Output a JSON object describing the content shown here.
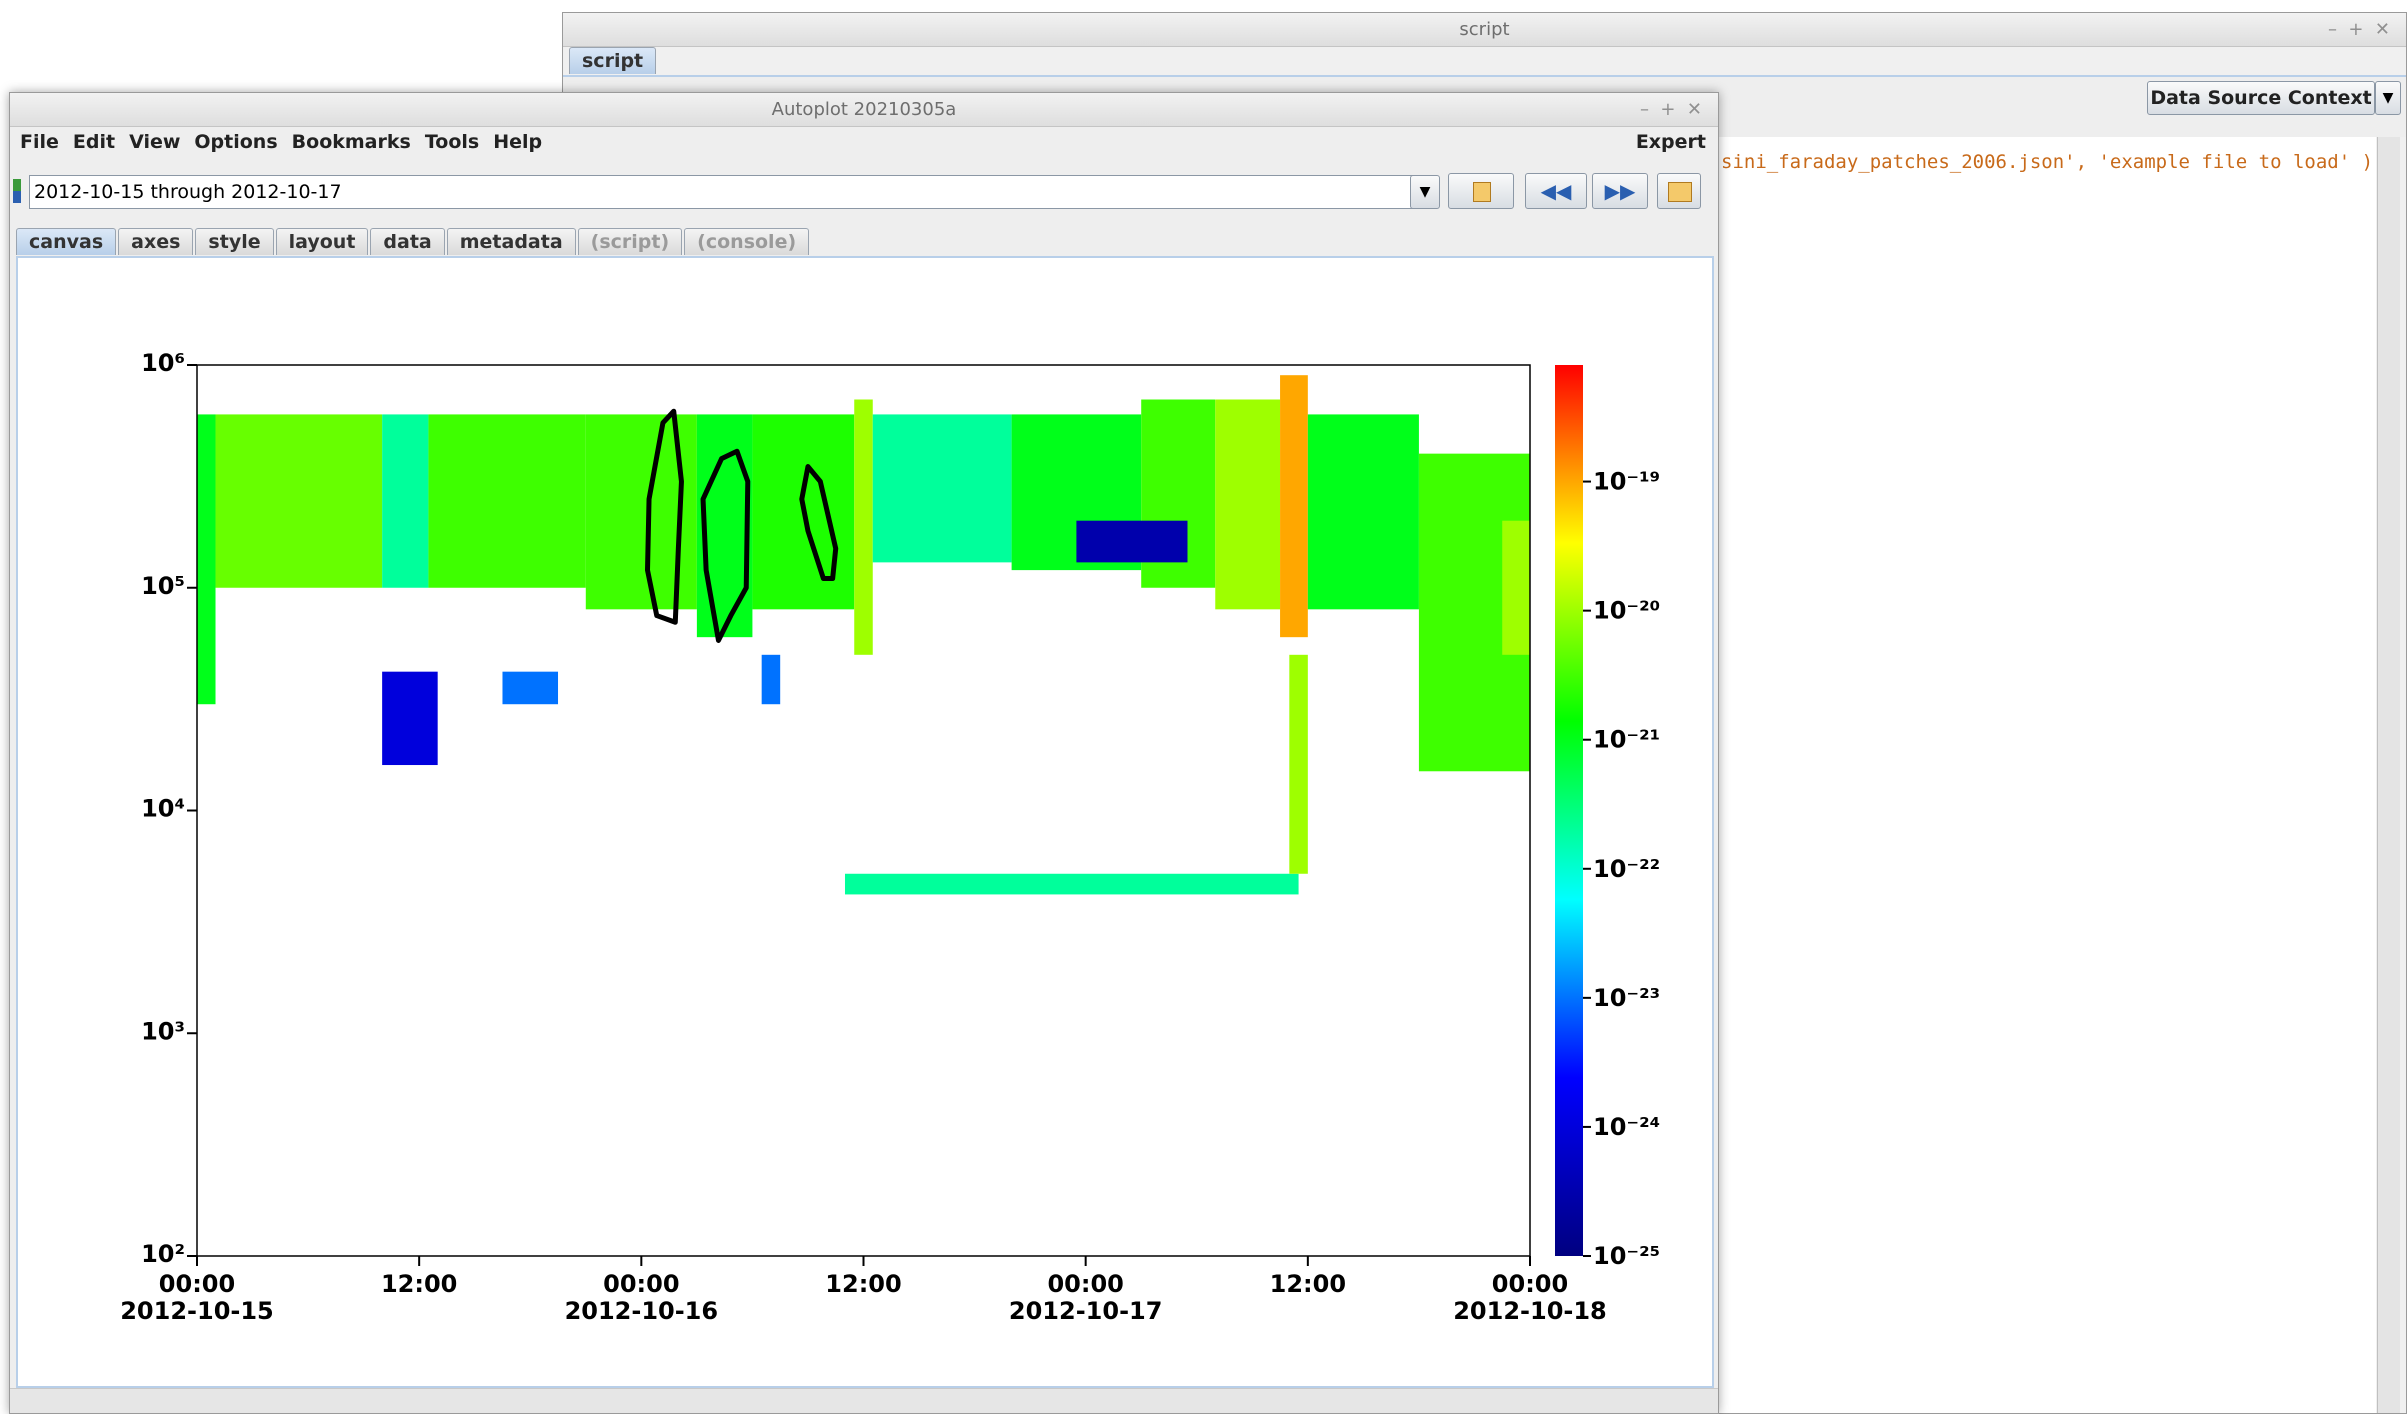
{
  "background_window": {
    "title": "script",
    "tab": "script",
    "context_button": "Data Source Context",
    "code_line": "sini_faraday_patches_2006.json', 'example file to load' )"
  },
  "window": {
    "title": "Autoplot 20210305a",
    "menu": [
      "File",
      "Edit",
      "View",
      "Options",
      "Bookmarks",
      "Tools",
      "Help"
    ],
    "mode": "Expert",
    "uri": "2012-10-15 through 2012-10-17",
    "tabs": [
      "canvas",
      "axes",
      "style",
      "layout",
      "data",
      "metadata",
      "(script)",
      "(console)"
    ]
  },
  "chart_data": {
    "type": "spectrogram",
    "xlim": [
      "2012-10-15T00:00",
      "2012-10-18T00:00"
    ],
    "xticks": [
      {
        "value": "2012-10-15T00:00",
        "label": "00:00",
        "sublabel": "2012-10-15"
      },
      {
        "value": "2012-10-15T12:00",
        "label": "12:00"
      },
      {
        "value": "2012-10-16T00:00",
        "label": "00:00",
        "sublabel": "2012-10-16"
      },
      {
        "value": "2012-10-16T12:00",
        "label": "12:00"
      },
      {
        "value": "2012-10-17T00:00",
        "label": "00:00",
        "sublabel": "2012-10-17"
      },
      {
        "value": "2012-10-17T12:00",
        "label": "12:00"
      },
      {
        "value": "2012-10-18T00:00",
        "label": "00:00",
        "sublabel": "2012-10-18"
      }
    ],
    "ylim": [
      100,
      1000000
    ],
    "ylog": true,
    "yticks": [
      {
        "value": 100,
        "label": "10²"
      },
      {
        "value": 1000,
        "label": "10³"
      },
      {
        "value": 10000,
        "label": "10⁴"
      },
      {
        "value": 100000,
        "label": "10⁵"
      },
      {
        "value": 1000000,
        "label": "10⁶"
      }
    ],
    "zlim": [
      1e-25,
      8e-19
    ],
    "zlog": true,
    "zticks": [
      {
        "value": 1e-25,
        "label": "10⁻²⁵"
      },
      {
        "value": 1e-24,
        "label": "10⁻²⁴"
      },
      {
        "value": 1e-23,
        "label": "10⁻²³"
      },
      {
        "value": 1e-22,
        "label": "10⁻²²"
      },
      {
        "value": 1e-21,
        "label": "10⁻²¹"
      },
      {
        "value": 1e-20,
        "label": "10⁻²⁰"
      },
      {
        "value": 1e-19,
        "label": "10⁻¹⁹"
      }
    ],
    "colormap": [
      "#000080",
      "#0000ff",
      "#00ffff",
      "#00ff00",
      "#ffff00",
      "#ff0000"
    ],
    "patches": [
      {
        "t": [
          "2012-10-15T00:00",
          "2012-10-15T01:00"
        ],
        "f": [
          30000,
          600000
        ],
        "z": 1e-21
      },
      {
        "t": [
          "2012-10-15T01:00",
          "2012-10-15T10:00"
        ],
        "f": [
          100000,
          600000
        ],
        "z": 5e-21
      },
      {
        "t": [
          "2012-10-15T10:00",
          "2012-10-15T12:30"
        ],
        "f": [
          100000,
          600000
        ],
        "z": 2e-22
      },
      {
        "t": [
          "2012-10-15T12:30",
          "2012-10-15T21:00"
        ],
        "f": [
          100000,
          600000
        ],
        "z": 3e-21
      },
      {
        "t": [
          "2012-10-15T21:00",
          "2012-10-16T03:00"
        ],
        "f": [
          80000,
          600000
        ],
        "z": 3e-21
      },
      {
        "t": [
          "2012-10-16T03:00",
          "2012-10-16T06:00"
        ],
        "f": [
          60000,
          600000
        ],
        "z": 1e-21
      },
      {
        "t": [
          "2012-10-16T06:00",
          "2012-10-16T11:30"
        ],
        "f": [
          80000,
          600000
        ],
        "z": 2e-21
      },
      {
        "t": [
          "2012-10-16T11:30",
          "2012-10-16T12:30"
        ],
        "f": [
          50000,
          700000
        ],
        "z": 1e-20
      },
      {
        "t": [
          "2012-10-16T12:30",
          "2012-10-16T20:00"
        ],
        "f": [
          130000,
          600000
        ],
        "z": 2e-22
      },
      {
        "t": [
          "2012-10-16T20:00",
          "2012-10-17T03:00"
        ],
        "f": [
          120000,
          600000
        ],
        "z": 1e-21
      },
      {
        "t": [
          "2012-10-17T03:00",
          "2012-10-17T07:00"
        ],
        "f": [
          100000,
          700000
        ],
        "z": 3e-21
      },
      {
        "t": [
          "2012-10-17T07:00",
          "2012-10-17T10:30"
        ],
        "f": [
          80000,
          700000
        ],
        "z": 1e-20
      },
      {
        "t": [
          "2012-10-17T10:30",
          "2012-10-17T12:00"
        ],
        "f": [
          60000,
          900000
        ],
        "z": 1e-19
      },
      {
        "t": [
          "2012-10-17T12:00",
          "2012-10-17T18:00"
        ],
        "f": [
          80000,
          600000
        ],
        "z": 1e-21
      },
      {
        "t": [
          "2012-10-17T18:00",
          "2012-10-18T00:00"
        ],
        "f": [
          15000,
          400000
        ],
        "z": 3e-21
      },
      {
        "t": [
          "2012-10-17T22:30",
          "2012-10-18T00:00"
        ],
        "f": [
          50000,
          200000
        ],
        "z": 1e-20
      },
      {
        "t": [
          "2012-10-16T11:00",
          "2012-10-17T11:30"
        ],
        "f": [
          4200,
          5200
        ],
        "z": 2e-22
      },
      {
        "t": [
          "2012-10-17T11:00",
          "2012-10-17T12:00"
        ],
        "f": [
          5200,
          50000
        ],
        "z": 1e-20
      },
      {
        "t": [
          "2012-10-15T10:00",
          "2012-10-15T13:00"
        ],
        "f": [
          16000,
          42000
        ],
        "z": 1e-24
      },
      {
        "t": [
          "2012-10-15T16:30",
          "2012-10-15T19:30"
        ],
        "f": [
          30000,
          42000
        ],
        "z": 1e-23
      },
      {
        "t": [
          "2012-10-16T23:30",
          "2012-10-17T05:30"
        ],
        "f": [
          130000,
          200000
        ],
        "z": 3e-25
      },
      {
        "t": [
          "2012-10-16T06:30",
          "2012-10-16T07:30"
        ],
        "f": [
          30000,
          50000
        ],
        "z": 1e-23
      }
    ],
    "contour_color": "#000000",
    "contours": [
      {
        "x": [
          "2012-10-16T00:25",
          "2012-10-16T01:10",
          "2012-10-16T01:45",
          "2012-10-16T02:10",
          "2012-10-16T02:00",
          "2012-10-16T01:50",
          "2012-10-16T00:50",
          "2012-10-16T00:20"
        ],
        "y": [
          250000,
          550000,
          620000,
          300000,
          150000,
          70000,
          75000,
          120000
        ]
      },
      {
        "x": [
          "2012-10-16T03:20",
          "2012-10-16T04:20",
          "2012-10-16T05:10",
          "2012-10-16T05:45",
          "2012-10-16T05:40",
          "2012-10-16T04:50",
          "2012-10-16T04:10",
          "2012-10-16T03:30"
        ],
        "y": [
          250000,
          380000,
          410000,
          300000,
          100000,
          75000,
          58000,
          120000
        ]
      },
      {
        "x": [
          "2012-10-16T08:40",
          "2012-10-16T09:00",
          "2012-10-16T09:40",
          "2012-10-16T10:30",
          "2012-10-16T10:20",
          "2012-10-16T09:50",
          "2012-10-16T09:00"
        ],
        "y": [
          250000,
          350000,
          300000,
          150000,
          110000,
          110000,
          180000
        ]
      }
    ]
  }
}
